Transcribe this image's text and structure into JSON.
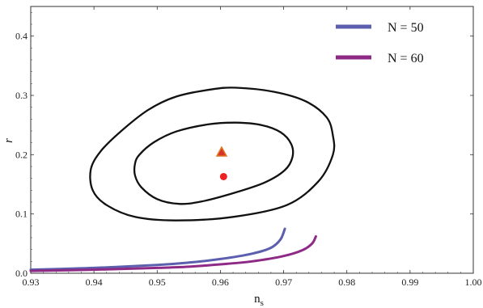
{
  "chart_data": {
    "type": "line",
    "xlabel": "n",
    "xlabel_sub": "s",
    "ylabel": "r",
    "xlim": [
      0.93,
      1.0
    ],
    "ylim": [
      0.0,
      0.45
    ],
    "x_ticks": [
      0.93,
      0.94,
      0.95,
      0.96,
      0.97,
      0.98,
      0.99,
      1.0
    ],
    "x_tick_labels": [
      "0.93",
      "0.94",
      "0.95",
      "0.96",
      "0.97",
      "0.98",
      "0.99",
      "1.00"
    ],
    "y_ticks": [
      0.0,
      0.1,
      0.2,
      0.3,
      0.4
    ],
    "y_tick_labels": [
      "0.0",
      "0.1",
      "0.2",
      "0.3",
      "0.4"
    ],
    "legend_position": "top-right",
    "series": [
      {
        "name": "N = 50",
        "color": "#5b5fae",
        "points": [
          [
            0.93,
            0.006
          ],
          [
            0.94,
            0.009
          ],
          [
            0.95,
            0.014
          ],
          [
            0.955,
            0.018
          ],
          [
            0.96,
            0.024
          ],
          [
            0.965,
            0.033
          ],
          [
            0.968,
            0.043
          ],
          [
            0.9695,
            0.057
          ],
          [
            0.9702,
            0.075
          ]
        ]
      },
      {
        "name": "N = 60",
        "color": "#8e2a86",
        "points": [
          [
            0.93,
            0.004
          ],
          [
            0.94,
            0.006
          ],
          [
            0.95,
            0.009
          ],
          [
            0.955,
            0.011
          ],
          [
            0.96,
            0.015
          ],
          [
            0.965,
            0.02
          ],
          [
            0.97,
            0.029
          ],
          [
            0.973,
            0.039
          ],
          [
            0.9745,
            0.05
          ],
          [
            0.9751,
            0.062
          ]
        ]
      }
    ],
    "contours": [
      {
        "color": "#111111",
        "points": [
          [
            0.9465,
            0.185
          ],
          [
            0.9472,
            0.2
          ],
          [
            0.9495,
            0.221
          ],
          [
            0.953,
            0.239
          ],
          [
            0.958,
            0.251
          ],
          [
            0.9625,
            0.254
          ],
          [
            0.9665,
            0.25
          ],
          [
            0.9695,
            0.238
          ],
          [
            0.9712,
            0.218
          ],
          [
            0.9714,
            0.196
          ],
          [
            0.9702,
            0.174
          ],
          [
            0.967,
            0.153
          ],
          [
            0.962,
            0.135
          ],
          [
            0.957,
            0.121
          ],
          [
            0.9535,
            0.117
          ],
          [
            0.95,
            0.125
          ],
          [
            0.9475,
            0.145
          ],
          [
            0.9465,
            0.165
          ]
        ]
      },
      {
        "color": "#111111",
        "points": [
          [
            0.9395,
            0.175
          ],
          [
            0.941,
            0.205
          ],
          [
            0.944,
            0.237
          ],
          [
            0.9485,
            0.275
          ],
          [
            0.953,
            0.298
          ],
          [
            0.9585,
            0.31
          ],
          [
            0.9625,
            0.313
          ],
          [
            0.9685,
            0.306
          ],
          [
            0.9735,
            0.29
          ],
          [
            0.9768,
            0.263
          ],
          [
            0.9778,
            0.232
          ],
          [
            0.9778,
            0.2
          ],
          [
            0.9755,
            0.155
          ],
          [
            0.9705,
            0.115
          ],
          [
            0.962,
            0.095
          ],
          [
            0.953,
            0.089
          ],
          [
            0.9465,
            0.095
          ],
          [
            0.942,
            0.115
          ],
          [
            0.9398,
            0.14
          ]
        ]
      }
    ],
    "markers": [
      {
        "shape": "triangle",
        "x": 0.9602,
        "y": 0.2045,
        "color": "#d9342b",
        "stroke": "#e07a20"
      },
      {
        "shape": "circle",
        "x": 0.9605,
        "y": 0.163,
        "color": "#ee2222"
      }
    ]
  }
}
